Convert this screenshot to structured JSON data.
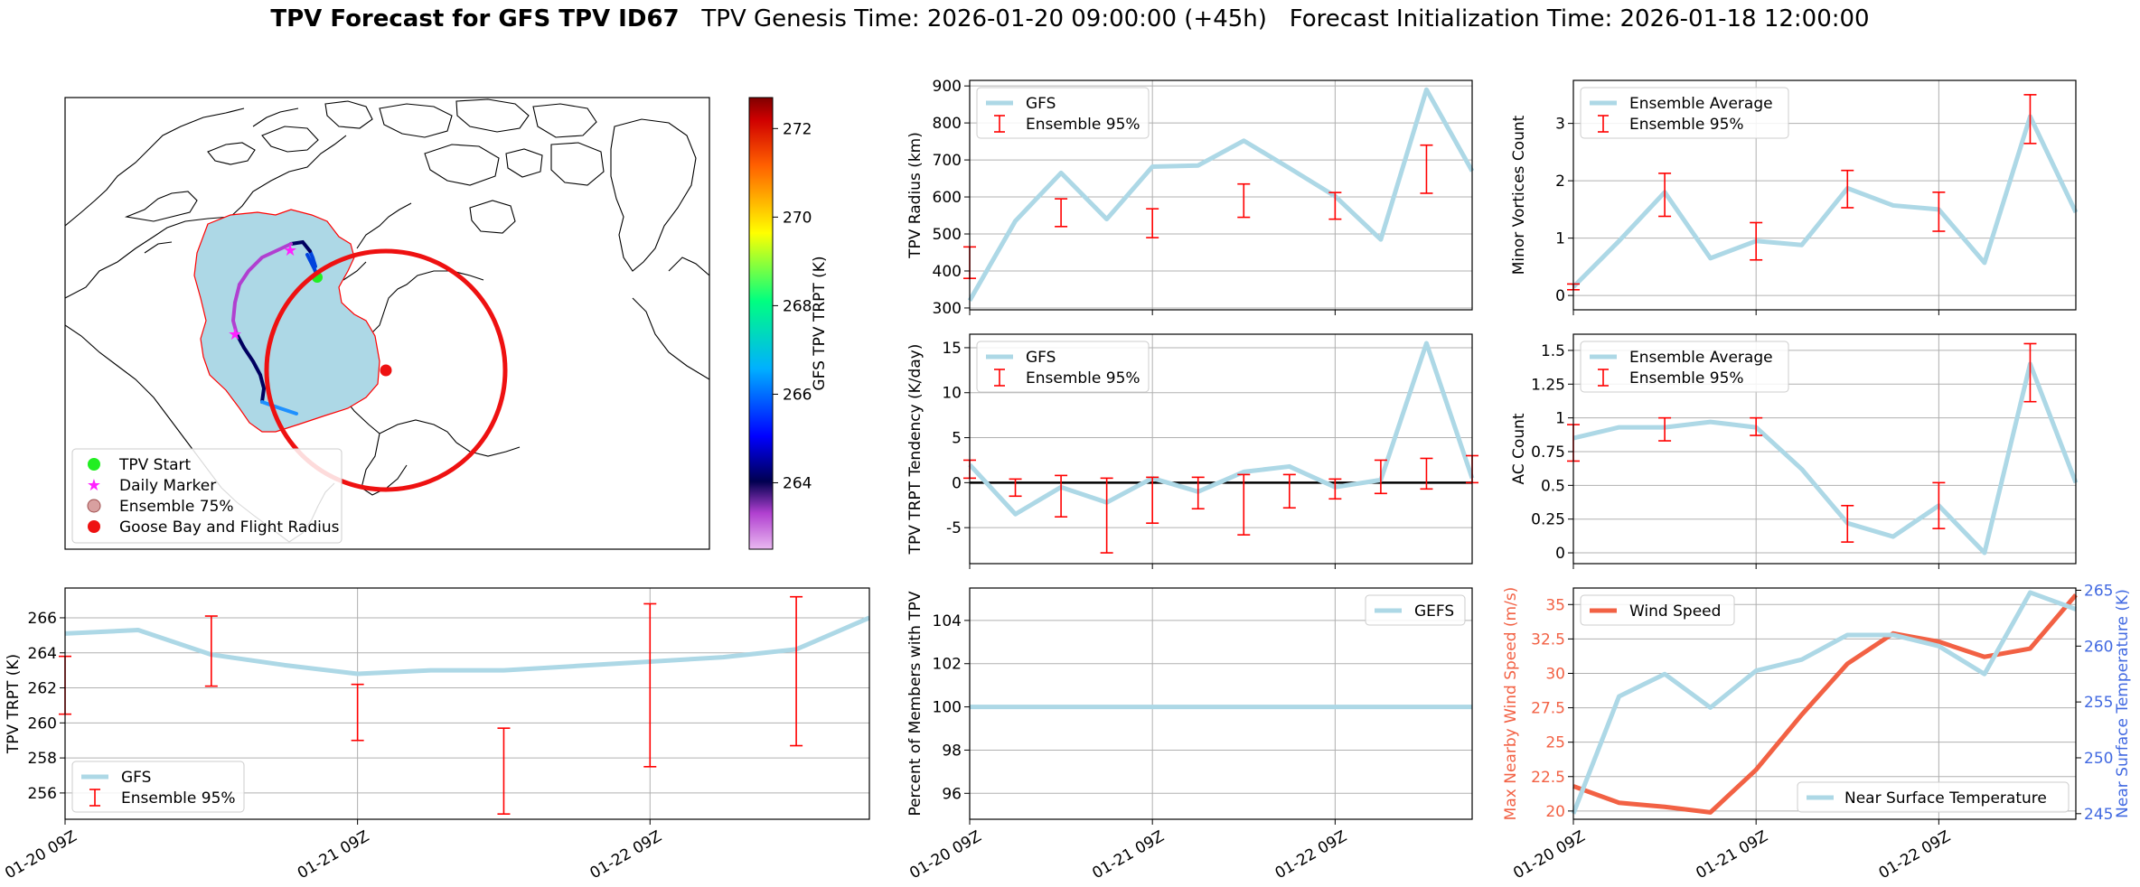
{
  "title": {
    "bold": "TPV Forecast for GFS TPV ID67",
    "rest": "   TPV Genesis Time: 2026-01-20 09:00:00 (+45h)   Forecast Initialization Time: 2026-01-18 12:00:00"
  },
  "map": {
    "legend": [
      "TPV Start",
      "Daily Marker",
      "Ensemble 75%",
      "Goose Bay and Flight Radius"
    ],
    "colorbar": {
      "label": "GFS TPV TRPT (K)",
      "ticks": [
        264,
        266,
        268,
        270,
        272
      ],
      "range": [
        262.5,
        272.7
      ]
    }
  },
  "colors": {
    "gfs_line": "#add8e6",
    "errorbar": "#ff0000",
    "wind": "#f26144",
    "temp_axis": "#4169e1",
    "start": "#22ee22",
    "marker": "#ff22ff",
    "goose": "#ee1111"
  },
  "chart_data": [
    {
      "id": "radius",
      "type": "line",
      "ylabel": "TPV Radius (km)",
      "x": [
        0,
        5,
        10,
        15,
        20,
        25,
        30,
        35,
        40,
        45,
        50,
        55
      ],
      "series": [
        {
          "name": "GFS",
          "values": [
            320,
            535,
            665,
            540,
            682,
            685,
            752,
            678,
            602,
            485,
            890,
            670
          ]
        }
      ],
      "errorbars": {
        "name": "Ensemble 95%",
        "x": [
          0,
          10,
          20,
          30,
          40,
          50
        ],
        "low": [
          380,
          520,
          490,
          545,
          540,
          610
        ],
        "high": [
          465,
          595,
          568,
          635,
          612,
          740
        ]
      },
      "ylim": [
        295,
        915
      ],
      "yticks": [
        300,
        400,
        500,
        600,
        700,
        800,
        900
      ],
      "xticks": [
        "01-20 09Z",
        "01-21 09Z",
        "01-22 09Z"
      ],
      "xlim": [
        0,
        55
      ]
    },
    {
      "id": "minor",
      "type": "line",
      "ylabel": "Minor Vortices Count",
      "x": [
        0,
        5,
        10,
        15,
        20,
        25,
        30,
        35,
        40,
        45,
        50,
        55
      ],
      "series": [
        {
          "name": "Ensemble Average",
          "values": [
            0.15,
            0.95,
            1.8,
            0.65,
            0.95,
            0.88,
            1.87,
            1.57,
            1.5,
            0.57,
            3.12,
            1.45
          ]
        }
      ],
      "errorbars": {
        "name": "Ensemble 95%",
        "x": [
          0,
          10,
          20,
          30,
          40,
          50
        ],
        "low": [
          0.1,
          1.38,
          0.62,
          1.53,
          1.12,
          2.65
        ],
        "high": [
          0.2,
          2.13,
          1.27,
          2.18,
          1.8,
          3.5
        ]
      },
      "ylim": [
        -0.25,
        3.75
      ],
      "yticks": [
        0,
        1,
        2,
        3
      ],
      "xticks": [
        "01-20 09Z",
        "01-21 09Z",
        "01-22 09Z"
      ],
      "xlim": [
        0,
        55
      ]
    },
    {
      "id": "tendency",
      "type": "line",
      "ylabel": "TPV TRPT Tendency (K/day)",
      "x": [
        0,
        5,
        10,
        15,
        20,
        25,
        30,
        35,
        40,
        45,
        50,
        55
      ],
      "series": [
        {
          "name": "GFS",
          "values": [
            2.0,
            -3.5,
            -0.5,
            -2.2,
            0.5,
            -1.0,
            1.2,
            1.8,
            -0.5,
            0.3,
            15.5,
            0.5
          ]
        }
      ],
      "errorbars": {
        "name": "Ensemble 95%",
        "x": [
          0,
          5,
          10,
          15,
          20,
          25,
          30,
          35,
          40,
          45,
          50,
          55
        ],
        "low": [
          0.5,
          -1.5,
          -3.8,
          -7.8,
          -4.5,
          -2.9,
          -5.8,
          -2.8,
          -1.8,
          -1.2,
          -0.7,
          0.0
        ],
        "high": [
          2.5,
          0.4,
          0.8,
          0.5,
          0.6,
          0.6,
          0.9,
          0.9,
          0.4,
          2.5,
          2.7,
          3.0
        ]
      },
      "ylim": [
        -9,
        16.5
      ],
      "yticks": [
        -5,
        0,
        5,
        10,
        15
      ],
      "zero_line": true,
      "xticks": [
        "01-20 09Z",
        "01-21 09Z",
        "01-22 09Z"
      ],
      "xlim": [
        0,
        55
      ]
    },
    {
      "id": "ac",
      "type": "line",
      "ylabel": "AC Count",
      "x": [
        0,
        5,
        10,
        15,
        20,
        25,
        30,
        35,
        40,
        45,
        50,
        55
      ],
      "series": [
        {
          "name": "Ensemble Average",
          "values": [
            0.85,
            0.93,
            0.93,
            0.97,
            0.93,
            0.62,
            0.22,
            0.12,
            0.35,
            0.0,
            1.4,
            0.52
          ]
        }
      ],
      "errorbars": {
        "name": "Ensemble 95%",
        "x": [
          0,
          10,
          20,
          30,
          40,
          50
        ],
        "low": [
          0.68,
          0.83,
          0.87,
          0.08,
          0.18,
          1.12
        ],
        "high": [
          0.95,
          1.0,
          1.0,
          0.35,
          0.52,
          1.55
        ]
      },
      "ylim": [
        -0.08,
        1.62
      ],
      "yticks": [
        0.0,
        0.25,
        0.5,
        0.75,
        1.0,
        1.25,
        1.5
      ],
      "xticks": [
        "01-20 09Z",
        "01-21 09Z",
        "01-22 09Z"
      ],
      "xlim": [
        0,
        55
      ]
    },
    {
      "id": "trpt",
      "type": "line",
      "ylabel": "TPV TRPT (K)",
      "x": [
        0,
        5,
        10,
        15,
        20,
        25,
        30,
        35,
        40,
        45,
        50,
        55
      ],
      "series": [
        {
          "name": "GFS",
          "values": [
            265.1,
            265.3,
            263.9,
            263.3,
            262.8,
            263.0,
            263.0,
            263.25,
            263.5,
            263.75,
            264.2,
            266.0
          ]
        }
      ],
      "errorbars": {
        "name": "Ensemble 95%",
        "x": [
          0,
          10,
          20,
          30,
          40,
          50
        ],
        "low": [
          260.5,
          262.1,
          259.0,
          254.8,
          257.5,
          258.7
        ],
        "high": [
          263.8,
          266.1,
          262.2,
          259.7,
          266.8,
          267.2
        ]
      },
      "ylim": [
        254.5,
        267.7
      ],
      "yticks": [
        256,
        258,
        260,
        262,
        264,
        266
      ],
      "xticks": [
        "01-20 09Z",
        "01-21 09Z",
        "01-22 09Z"
      ],
      "xlim": [
        0,
        55
      ]
    },
    {
      "id": "percent",
      "type": "line",
      "ylabel": "Percent of Members with TPV",
      "x": [
        0,
        55
      ],
      "series": [
        {
          "name": "GEFS",
          "values": [
            100,
            100
          ]
        }
      ],
      "ylim": [
        94.8,
        105.5
      ],
      "yticks": [
        96,
        98,
        100,
        102,
        104
      ],
      "xticks": [
        "01-20 09Z",
        "01-21 09Z",
        "01-22 09Z"
      ],
      "xlim": [
        0,
        55
      ]
    },
    {
      "id": "wind",
      "type": "line",
      "ylabel": "Max Nearby Wind Speed (m/s)",
      "y2label": "Near Surface Temperature (K)",
      "x": [
        0,
        5,
        10,
        15,
        20,
        25,
        30,
        35,
        40,
        45,
        50,
        55
      ],
      "series": [
        {
          "name": "Wind Speed",
          "axis": "left",
          "values": [
            21.8,
            20.6,
            20.3,
            19.9,
            23.0,
            27.0,
            30.7,
            32.9,
            32.3,
            31.2,
            31.8,
            35.7
          ]
        },
        {
          "name": "Near Surface Temperature",
          "axis": "right",
          "values": [
            245.0,
            255.5,
            257.5,
            254.5,
            257.8,
            258.8,
            261.0,
            261.0,
            260.0,
            257.5,
            264.8,
            263.3
          ]
        }
      ],
      "ylim": [
        19.4,
        36.2
      ],
      "yticks": [
        20.0,
        22.5,
        25.0,
        27.5,
        30.0,
        32.5,
        35.0
      ],
      "y2lim": [
        244.5,
        265.2
      ],
      "y2ticks": [
        245,
        250,
        255,
        260,
        265
      ],
      "xticks": [
        "01-20 09Z",
        "01-21 09Z",
        "01-22 09Z"
      ],
      "xlim": [
        0,
        55
      ]
    }
  ]
}
